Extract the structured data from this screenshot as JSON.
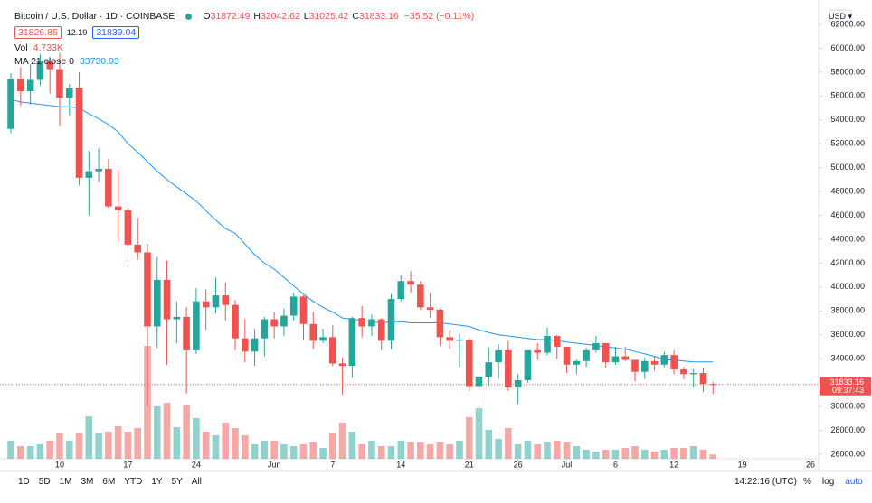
{
  "chart_data": {
    "type": "candlestick",
    "title": "Bitcoin / U.S. Dollar · 1D · COINBASE",
    "ohlc_prefixes": [
      "O",
      "H",
      "L",
      "C"
    ],
    "change": "−35.52 (−0.11%)",
    "bid": "31826.85",
    "spread": "12.19",
    "ask": "31839.04",
    "vol_label": "Vol",
    "vol_value": "4.733K",
    "ma": {
      "name": "MA 21 close 0",
      "value": "33730.93",
      "color": "#2196f3",
      "values": [
        55700,
        55500,
        55400,
        55300,
        55200,
        55100,
        55100,
        55000,
        54500,
        54100,
        53600,
        53000,
        52000,
        51300,
        50500,
        49700,
        49000,
        48400,
        47800,
        47200,
        46400,
        45600,
        44900,
        44500,
        43600,
        42700,
        42000,
        41500,
        40800,
        40100,
        39400,
        38800,
        38300,
        37900,
        37400,
        37300,
        37200,
        37100,
        37000,
        37100,
        37100,
        37000,
        37000,
        37000,
        37000,
        36900,
        36800,
        36700,
        36400,
        36200,
        36000,
        35900,
        35800,
        35700,
        35600,
        35600,
        35500,
        35400,
        35300,
        35200,
        35100,
        35000,
        34900,
        34800,
        34600,
        34400,
        34200,
        33900,
        33900,
        33800,
        33730,
        33730,
        33730
      ]
    },
    "up_color": "#26a69a",
    "down_color": "#ef5350",
    "candles": {
      "open": [
        53250,
        57450,
        56400,
        57350,
        58900,
        58250,
        55850,
        56700,
        49150,
        49700,
        49900,
        46750,
        46450,
        43550,
        42900,
        36700,
        40600,
        37300,
        37500,
        34700,
        38800,
        38300,
        39300,
        38500,
        35700,
        34600,
        35700,
        37300,
        36700,
        37600,
        39200,
        36900,
        35500,
        35800,
        33600,
        33400,
        37400,
        36700,
        37300,
        35500,
        39000,
        40500,
        40200,
        38300,
        38100,
        35800,
        35500,
        35600,
        31700,
        32500,
        33700,
        34700,
        31600,
        32200,
        34700,
        34500,
        35900,
        35000,
        33500,
        33800,
        34700,
        35300,
        33700,
        34200,
        33900,
        32900,
        33800,
        33500,
        34300,
        33100,
        32700,
        32800,
        31872.49
      ],
      "high": [
        57900,
        58400,
        58650,
        59500,
        59250,
        59600,
        57000,
        58000,
        51400,
        51600,
        50700,
        49800,
        46600,
        45800,
        43600,
        42500,
        42200,
        38800,
        38300,
        39900,
        39800,
        40800,
        40400,
        38900,
        37300,
        36500,
        37500,
        37900,
        38200,
        39500,
        39300,
        37900,
        36500,
        36800,
        34100,
        37500,
        38400,
        37700,
        37400,
        39400,
        41000,
        41300,
        40500,
        39500,
        38200,
        36400,
        36100,
        35700,
        33300,
        34900,
        35200,
        35500,
        32700,
        34700,
        35300,
        36600,
        36000,
        35000,
        33900,
        34900,
        35900,
        35300,
        35000,
        35000,
        33900,
        34100,
        34200,
        34600,
        34700,
        33300,
        33100,
        33200,
        32042.62
      ],
      "low": [
        52900,
        55200,
        55300,
        56900,
        56200,
        53500,
        54400,
        48500,
        46000,
        48800,
        46600,
        43800,
        42100,
        42300,
        30000,
        34900,
        33500,
        35300,
        31100,
        34400,
        36400,
        37800,
        37200,
        34700,
        33700,
        33400,
        34200,
        35700,
        35900,
        37200,
        35600,
        34800,
        35300,
        33400,
        31000,
        32400,
        35800,
        35900,
        34700,
        34800,
        38800,
        39500,
        38100,
        37400,
        35100,
        34800,
        33300,
        31300,
        28800,
        31700,
        32300,
        31300,
        30200,
        32000,
        33900,
        34300,
        34000,
        32800,
        32700,
        33300,
        34500,
        33200,
        33500,
        33800,
        32100,
        32300,
        33000,
        33300,
        32700,
        32300,
        31600,
        31200,
        31025.42
      ],
      "close": [
        57450,
        56400,
        57350,
        58900,
        58250,
        55850,
        56700,
        49150,
        49700,
        49900,
        46750,
        46450,
        43550,
        42900,
        36700,
        40600,
        37300,
        37500,
        34700,
        38800,
        38300,
        39300,
        38500,
        35700,
        34600,
        35700,
        37300,
        36700,
        37600,
        39200,
        36900,
        35500,
        35800,
        33600,
        33400,
        37400,
        36700,
        37300,
        35500,
        39000,
        40500,
        40200,
        38300,
        38100,
        35800,
        35500,
        35600,
        31700,
        32500,
        33700,
        34700,
        31600,
        32200,
        34700,
        34500,
        35900,
        35000,
        33500,
        33800,
        34700,
        35300,
        33700,
        34200,
        33900,
        32900,
        33800,
        33500,
        34300,
        33100,
        32700,
        32800,
        31870,
        31833.16
      ]
    },
    "volume": [
      20,
      14,
      14,
      16,
      20,
      28,
      20,
      28,
      47,
      28,
      30,
      36,
      30,
      34,
      125,
      58,
      62,
      35,
      60,
      45,
      30,
      26,
      40,
      34,
      26,
      16,
      20,
      20,
      16,
      14,
      16,
      18,
      12,
      28,
      40,
      30,
      16,
      20,
      14,
      14,
      20,
      18,
      18,
      16,
      18,
      16,
      20,
      46,
      56,
      32,
      22,
      34,
      16,
      20,
      16,
      18,
      20,
      18,
      14,
      10,
      8,
      10,
      10,
      12,
      14,
      10,
      8,
      10,
      12,
      12,
      14,
      10,
      4.733
    ],
    "volume_ylim": [
      0,
      508
    ],
    "last_price": "31833.16",
    "countdown": "09:37:43",
    "currency": "USD ▾",
    "ylim": [
      25616,
      64042
    ],
    "yticks": [
      {
        "value": 26000,
        "label": "26000.00"
      },
      {
        "value": 28000,
        "label": "28000.00"
      },
      {
        "value": 30000,
        "label": "30000.00"
      },
      {
        "value": 32000,
        "label": "32000.00"
      },
      {
        "value": 34000,
        "label": "34000.00"
      },
      {
        "value": 36000,
        "label": "36000.00"
      },
      {
        "value": 38000,
        "label": "38000.00"
      },
      {
        "value": 40000,
        "label": "40000.00"
      },
      {
        "value": 42000,
        "label": "42000.00"
      },
      {
        "value": 44000,
        "label": "44000.00"
      },
      {
        "value": 46000,
        "label": "46000.00"
      },
      {
        "value": 48000,
        "label": "48000.00"
      },
      {
        "value": 50000,
        "label": "50000.00"
      },
      {
        "value": 52000,
        "label": "52000.00"
      },
      {
        "value": 54000,
        "label": "54000.00"
      },
      {
        "value": 56000,
        "label": "56000.00"
      },
      {
        "value": 58000,
        "label": "58000.00"
      },
      {
        "value": 60000,
        "label": "60000.00"
      },
      {
        "value": 62000,
        "label": "62000.00"
      }
    ],
    "xlim": [
      -1.12,
      82.83
    ],
    "xticks": [
      {
        "value": 5,
        "label": "10"
      },
      {
        "value": 12,
        "label": "17"
      },
      {
        "value": 19,
        "label": "24"
      },
      {
        "value": 27,
        "label": "Jun"
      },
      {
        "value": 33,
        "label": "7"
      },
      {
        "value": 40,
        "label": "14"
      },
      {
        "value": 47,
        "label": "21"
      },
      {
        "value": 52,
        "label": "26"
      },
      {
        "value": 57,
        "label": "Jul"
      },
      {
        "value": 62,
        "label": "6"
      },
      {
        "value": 68,
        "label": "12"
      },
      {
        "value": 75,
        "label": "19"
      },
      {
        "value": 82,
        "label": "26"
      }
    ],
    "timeframes": [
      "1D",
      "5D",
      "1M",
      "3M",
      "6M",
      "YTD",
      "1Y",
      "5Y",
      "All"
    ],
    "clock": "14:22:16 (UTC)",
    "scale_options": [
      "%",
      "log",
      "auto"
    ]
  }
}
